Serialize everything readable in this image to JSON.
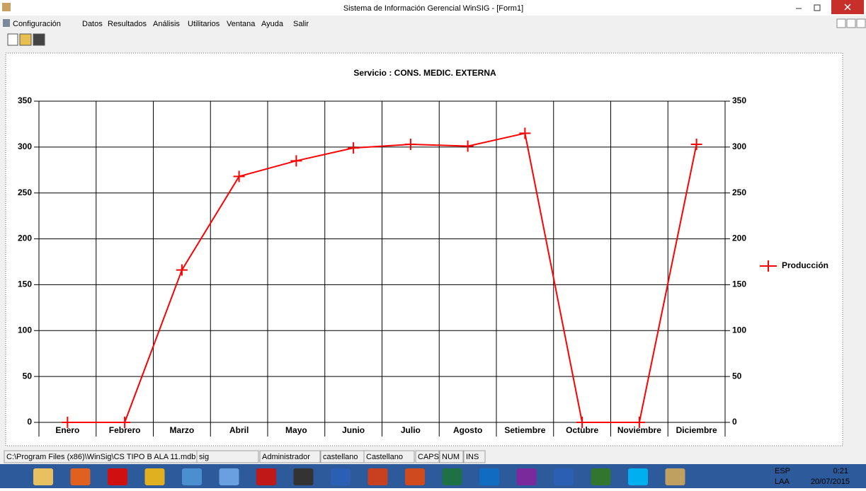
{
  "window": {
    "title": "Sistema de Información Gerencial  WinSIG - [Form1]"
  },
  "menu": [
    "Configuración",
    "Datos",
    "Resultados",
    "Análisis",
    "Utilitarios",
    "Ventana",
    "Ayuda",
    "Salir"
  ],
  "chart_data": {
    "type": "line",
    "title": "Servicio :  CONS. MEDIC. EXTERNA",
    "categories": [
      "Enero",
      "Febrero",
      "Marzo",
      "Abril",
      "Mayo",
      "Junio",
      "Julio",
      "Agosto",
      "Setiembre",
      "Octubre",
      "Noviembre",
      "Diciembre"
    ],
    "series": [
      {
        "name": "Producción",
        "color": "#ff0000",
        "values": [
          0,
          0,
          166,
          268,
          285,
          299,
          303,
          301,
          315,
          0,
          0,
          303
        ]
      }
    ],
    "ylim": [
      0,
      350
    ],
    "yticks": [
      0,
      50,
      100,
      150,
      200,
      250,
      300,
      350
    ],
    "y2lim": [
      0,
      350
    ],
    "y2ticks": [
      0,
      50,
      100,
      150,
      200,
      250,
      300,
      350
    ],
    "grid": true,
    "legend": "right"
  },
  "status_bar": [
    "C:\\Program Files (x86)\\WinSig\\CS TIPO B ALA 11.mdb",
    "sig",
    "Administrador",
    "castellano",
    "Castellano",
    "CAPS",
    "NUM",
    "INS"
  ],
  "taskbar": {
    "language": "ESP",
    "region": "LAA",
    "time": "0:21",
    "date": "20/07/2015"
  }
}
